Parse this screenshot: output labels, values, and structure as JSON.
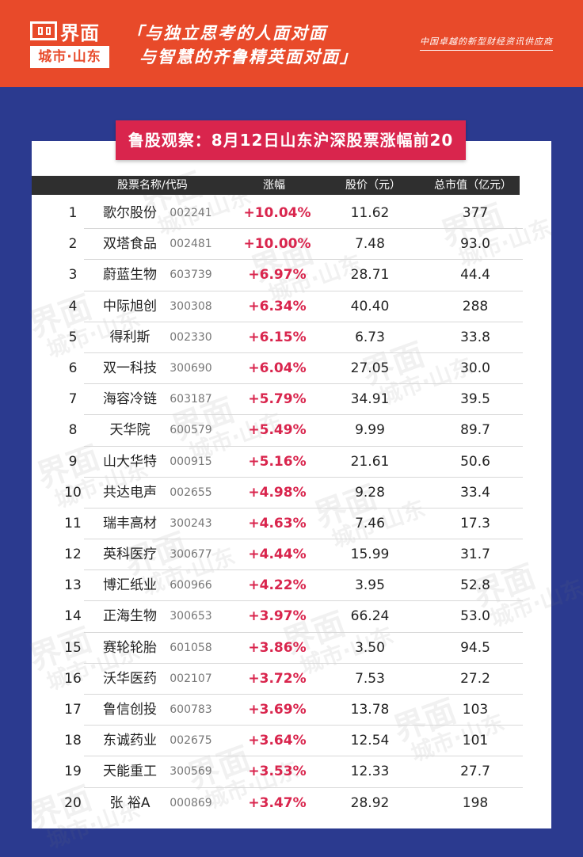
{
  "header": {
    "logo_name": "界面",
    "logo_city": "城市·山东",
    "slogan_line1": "「与独立思考的人面对面",
    "slogan_line2": "与智慧的齐鲁精英面对面」",
    "tagline": "中国卓越的新型财经资讯供应商",
    "colors": {
      "header_bg": "#e84a2a",
      "page_bg": "#2b3a8f",
      "banner": "#d9254d",
      "gain": "#d9254d"
    }
  },
  "title": "鲁股观察：8月12日山东沪深股票涨幅前20",
  "watermark": {
    "top": "界面",
    "bottom": "城市·山东"
  },
  "columns": {
    "name_code": "股票名称/代码",
    "change": "涨幅",
    "price": "股价（元）",
    "market_cap": "总市值（亿元）"
  },
  "rows": [
    {
      "rank": "1",
      "name": "歌尔股份",
      "code": "002241",
      "change": "+10.04%",
      "price": "11.62",
      "cap": "377"
    },
    {
      "rank": "2",
      "name": "双塔食品",
      "code": "002481",
      "change": "+10.00%",
      "price": "7.48",
      "cap": "93.0"
    },
    {
      "rank": "3",
      "name": "蔚蓝生物",
      "code": "603739",
      "change": "+6.97%",
      "price": "28.71",
      "cap": "44.4"
    },
    {
      "rank": "4",
      "name": "中际旭创",
      "code": "300308",
      "change": "+6.34%",
      "price": "40.40",
      "cap": "288"
    },
    {
      "rank": "5",
      "name": "得利斯",
      "code": "002330",
      "change": "+6.15%",
      "price": "6.73",
      "cap": "33.8"
    },
    {
      "rank": "6",
      "name": "双一科技",
      "code": "300690",
      "change": "+6.04%",
      "price": "27.05",
      "cap": "30.0"
    },
    {
      "rank": "7",
      "name": "海容冷链",
      "code": "603187",
      "change": "+5.79%",
      "price": "34.91",
      "cap": "39.5"
    },
    {
      "rank": "8",
      "name": "天华院",
      "code": "600579",
      "change": "+5.49%",
      "price": "9.99",
      "cap": "89.7"
    },
    {
      "rank": "9",
      "name": "山大华特",
      "code": "000915",
      "change": "+5.16%",
      "price": "21.61",
      "cap": "50.6"
    },
    {
      "rank": "10",
      "name": "共达电声",
      "code": "002655",
      "change": "+4.98%",
      "price": "9.28",
      "cap": "33.4"
    },
    {
      "rank": "11",
      "name": "瑞丰高材",
      "code": "300243",
      "change": "+4.63%",
      "price": "7.46",
      "cap": "17.3"
    },
    {
      "rank": "12",
      "name": "英科医疗",
      "code": "300677",
      "change": "+4.44%",
      "price": "15.99",
      "cap": "31.7"
    },
    {
      "rank": "13",
      "name": "博汇纸业",
      "code": "600966",
      "change": "+4.22%",
      "price": "3.95",
      "cap": "52.8"
    },
    {
      "rank": "14",
      "name": "正海生物",
      "code": "300653",
      "change": "+3.97%",
      "price": "66.24",
      "cap": "53.0"
    },
    {
      "rank": "15",
      "name": "赛轮轮胎",
      "code": "601058",
      "change": "+3.86%",
      "price": "3.50",
      "cap": "94.5"
    },
    {
      "rank": "16",
      "name": "沃华医药",
      "code": "002107",
      "change": "+3.72%",
      "price": "7.53",
      "cap": "27.2"
    },
    {
      "rank": "17",
      "name": "鲁信创投",
      "code": "600783",
      "change": "+3.69%",
      "price": "13.78",
      "cap": "103"
    },
    {
      "rank": "18",
      "name": "东诚药业",
      "code": "002675",
      "change": "+3.64%",
      "price": "12.54",
      "cap": "101"
    },
    {
      "rank": "19",
      "name": "天能重工",
      "code": "300569",
      "change": "+3.53%",
      "price": "12.33",
      "cap": "27.7"
    },
    {
      "rank": "20",
      "name": "张 裕A",
      "code": "000869",
      "change": "+3.47%",
      "price": "28.92",
      "cap": "198"
    }
  ]
}
